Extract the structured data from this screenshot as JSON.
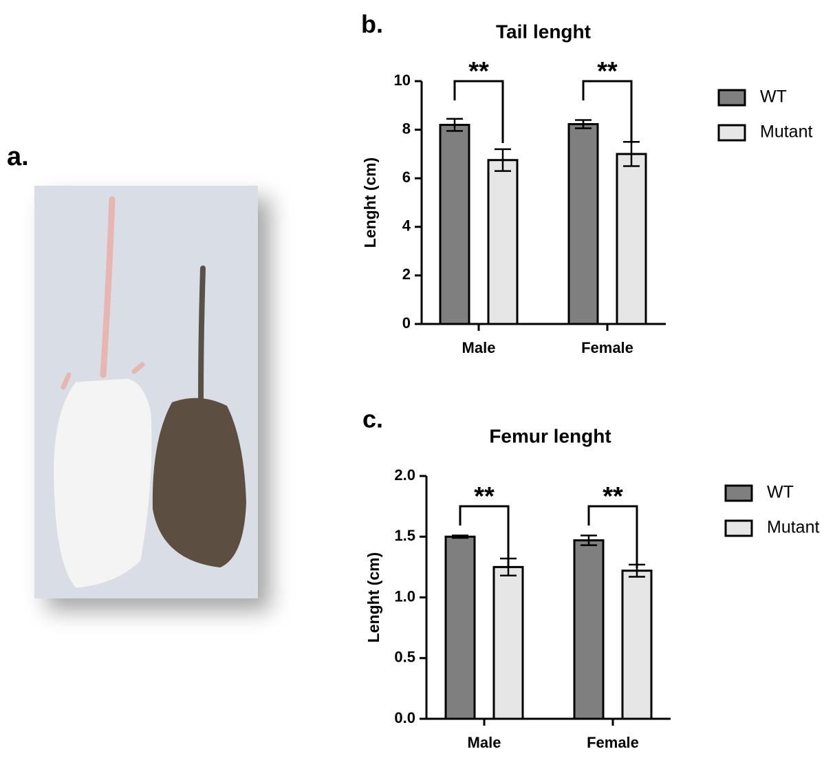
{
  "photo": {
    "label": "a."
  },
  "chart_data": [
    {
      "type": "bar",
      "panel": "b.",
      "title": "Tail lenght",
      "ylabel": "Lenght (cm)",
      "categories": [
        "Male",
        "Female"
      ],
      "series": [
        {
          "name": "WT",
          "color": "#7f7f7f",
          "values": [
            8.2,
            8.23
          ],
          "errors": [
            0.25,
            0.17
          ]
        },
        {
          "name": "Mutant",
          "color": "#e6e6e6",
          "values": [
            6.75,
            7.0
          ],
          "errors": [
            0.45,
            0.5
          ]
        }
      ],
      "annotations": [
        "**",
        "**"
      ],
      "ylim": [
        0,
        10
      ],
      "yticks": [
        0,
        2,
        4,
        6,
        8,
        10
      ],
      "legend": "right"
    },
    {
      "type": "bar",
      "panel": "c.",
      "title": "Femur lenght",
      "ylabel": "Lenght (cm)",
      "categories": [
        "Male",
        "Female"
      ],
      "series": [
        {
          "name": "WT",
          "color": "#7f7f7f",
          "values": [
            1.5,
            1.47
          ],
          "errors": [
            0.01,
            0.04
          ]
        },
        {
          "name": "Mutant",
          "color": "#e6e6e6",
          "values": [
            1.25,
            1.22
          ],
          "errors": [
            0.07,
            0.05
          ]
        }
      ],
      "annotations": [
        "**",
        "**"
      ],
      "ylim": [
        0,
        2
      ],
      "yticks": [
        {
          "value": 0,
          "label": "0.0"
        },
        0.5,
        {
          "value": 1,
          "label": "1.0"
        },
        1.5,
        {
          "value": 2,
          "label": "2.0"
        }
      ],
      "legend": "right"
    }
  ]
}
